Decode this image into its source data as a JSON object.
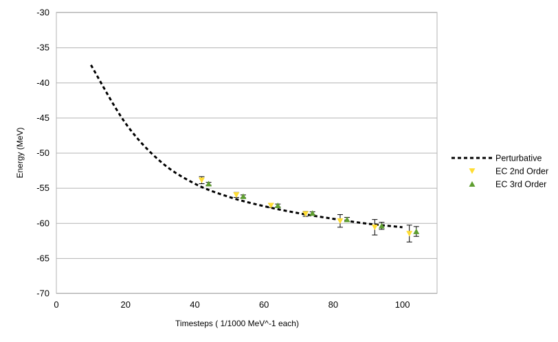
{
  "chart_data": {
    "type": "line",
    "title": "",
    "xlabel": "Timesteps ( 1/1000 MeV^-1 each)",
    "ylabel": "Energy (MeV)",
    "xlim": [
      0,
      110
    ],
    "ylim": [
      -70,
      -30
    ],
    "xticks": [
      0,
      20,
      40,
      60,
      80,
      100
    ],
    "yticks": [
      -30,
      -35,
      -40,
      -45,
      -50,
      -55,
      -60,
      -65,
      -70
    ],
    "xtick_labels": [
      "0",
      "20",
      "40",
      "60",
      "80",
      "100"
    ],
    "ytick_labels": [
      "-30",
      "-35",
      "-40",
      "-45",
      "-50",
      "-55",
      "-60",
      "-65",
      "-70"
    ],
    "grid": "horizontal",
    "legend_position": "right",
    "series": [
      {
        "name": "Perturbative",
        "style": "dashed-line",
        "color": "#000000",
        "x": [
          10,
          20,
          30,
          40,
          50,
          60,
          70,
          80,
          90,
          100
        ],
        "y": [
          -37.5,
          -45.8,
          -51.2,
          -54.4,
          -56.3,
          -57.6,
          -58.6,
          -59.4,
          -60.1,
          -60.6
        ]
      },
      {
        "name": "EC 2nd Order",
        "style": "marker-down-triangle",
        "color": "#ffdd33",
        "x": [
          42,
          52,
          62,
          72,
          82,
          92,
          102
        ],
        "y": [
          -53.9,
          -56.0,
          -57.5,
          -58.7,
          -59.7,
          -60.6,
          -61.5
        ],
        "err": [
          0.5,
          0.35,
          0.3,
          0.35,
          0.9,
          1.1,
          1.2
        ]
      },
      {
        "name": "EC 3rd Order",
        "style": "marker-up-triangle",
        "color": "#5e9e30",
        "x": [
          44,
          54,
          64,
          74,
          84,
          94,
          104
        ],
        "y": [
          -54.4,
          -56.2,
          -57.5,
          -58.6,
          -59.5,
          -60.4,
          -61.2
        ],
        "err": [
          0.2,
          0.2,
          0.2,
          0.2,
          0.3,
          0.5,
          0.7
        ]
      }
    ]
  }
}
